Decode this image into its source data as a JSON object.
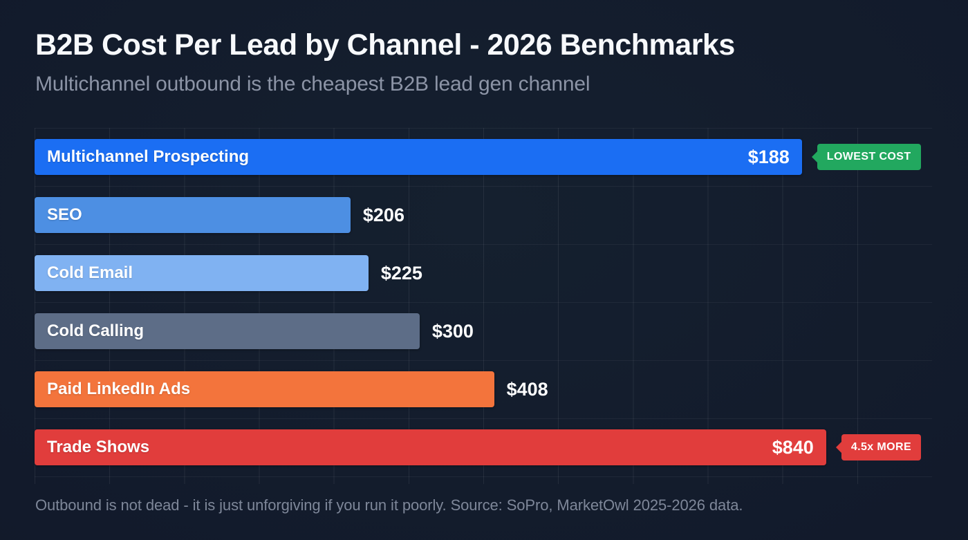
{
  "header": {
    "title": "B2B Cost Per Lead by Channel - 2026 Benchmarks",
    "subtitle": "Multichannel outbound is the cheapest B2B lead gen channel"
  },
  "chart_data": {
    "type": "bar",
    "orientation": "horizontal",
    "title": "B2B Cost Per Lead by Channel - 2026 Benchmarks",
    "subtitle": "Multichannel outbound is the cheapest B2B lead gen channel",
    "categories": [
      "Multichannel Prospecting",
      "SEO",
      "Cold Email",
      "Cold Calling",
      "Paid LinkedIn Ads",
      "Trade Shows"
    ],
    "values": [
      188,
      206,
      225,
      300,
      408,
      840
    ],
    "value_labels": [
      "$188",
      "$206",
      "$225",
      "$300",
      "$408",
      "$840"
    ],
    "unit": "USD cost per lead",
    "bar_colors": [
      "#1b6ef3",
      "#4d8fe3",
      "#80b2f2",
      "#5d6d87",
      "#f3743c",
      "#e13d3c"
    ],
    "annotations": [
      {
        "category": "Multichannel Prospecting",
        "label": "LOWEST COST",
        "color": "#22a85f"
      },
      {
        "category": "Trade Shows",
        "label": "4.5x MORE",
        "color": "#e13d3c"
      }
    ],
    "grid": "vertical-and-horizontal, faint",
    "legend": "none",
    "xlabel": "",
    "ylabel": "",
    "background": "#131b2d"
  },
  "bars": [
    {
      "label": "Multichannel Prospecting",
      "value": "$188",
      "width_pct": 85.5,
      "color": "#1b6ef3",
      "badge": {
        "label": "LOWEST COST",
        "color": "#22a85f"
      }
    },
    {
      "label": "SEO",
      "value": "$206",
      "width_pct": 35.2,
      "color": "#4d8fe3"
    },
    {
      "label": "Cold Email",
      "value": "$225",
      "width_pct": 37.2,
      "color": "#80b2f2"
    },
    {
      "label": "Cold Calling",
      "value": "$300",
      "width_pct": 42.9,
      "color": "#5d6d87"
    },
    {
      "label": "Paid LinkedIn Ads",
      "value": "$408",
      "width_pct": 51.2,
      "color": "#f3743c"
    },
    {
      "label": "Trade Shows",
      "value": "$840",
      "width_pct": 88.2,
      "color": "#e13d3c",
      "badge": {
        "label": "4.5x MORE",
        "color": "#e13d3c"
      }
    }
  ],
  "footer": {
    "note": "Outbound is not dead - it is just unforgiving if you run it poorly. Source: SoPro, MarketOwl 2025-2026 data."
  }
}
